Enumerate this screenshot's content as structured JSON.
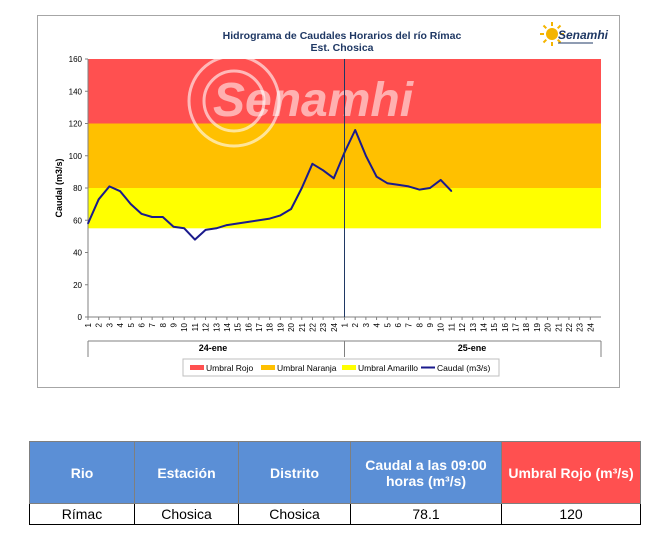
{
  "chart_data": {
    "type": "line",
    "title": "Hidrograma de Caudales Horarios del río Rímac",
    "subtitle": "Est. Chosica",
    "logo_text": "Senamhi",
    "watermark_text": "Senamhi",
    "ylabel": "Caudal  (m3/s)",
    "ylim": [
      0,
      160
    ],
    "yticks": [
      "0",
      "20",
      "40",
      "60",
      "80",
      "100",
      "120",
      "140",
      "160"
    ],
    "x_ticks": [
      "1",
      "2",
      "3",
      "4",
      "5",
      "6",
      "7",
      "8",
      "9",
      "10",
      "11",
      "12",
      "13",
      "14",
      "15",
      "16",
      "17",
      "18",
      "19",
      "20",
      "21",
      "22",
      "23",
      "24",
      "1",
      "2",
      "3",
      "4",
      "5",
      "6",
      "7",
      "8",
      "9",
      "10",
      "11",
      "12",
      "13",
      "14",
      "15",
      "16",
      "17",
      "18",
      "19",
      "20",
      "21",
      "22",
      "23",
      "24"
    ],
    "day_labels": [
      "24-ene",
      "25-ene"
    ],
    "thresholds": [
      {
        "name": "Umbral Rojo",
        "from": 120,
        "to": 160,
        "color": "#ff5050"
      },
      {
        "name": "Umbral Naranja",
        "from": 80,
        "to": 120,
        "color": "#ffc000"
      },
      {
        "name": "Umbral Amarillo",
        "from": 55,
        "to": 80,
        "color": "#ffff00"
      }
    ],
    "series": [
      {
        "name": "Caudal (m3/s)",
        "color": "#1a1a8c",
        "values": [
          58,
          73,
          81,
          78,
          70,
          64,
          62,
          62,
          56,
          55,
          48,
          54,
          55,
          57,
          58,
          59,
          60,
          61,
          63,
          67,
          80,
          95,
          91,
          86,
          102,
          116,
          100,
          87,
          83,
          82,
          81,
          79,
          80,
          85,
          78.1
        ]
      }
    ],
    "grid": false,
    "legend_position": "bottom"
  },
  "table": {
    "headers": [
      "Rio",
      "Estación",
      "Distrito",
      "Caudal a las 09:00 horas (m³/s)",
      "Umbral Rojo (m³/s)"
    ],
    "row": [
      "Rímac",
      "Chosica",
      "Chosica",
      "78.1",
      "120"
    ]
  }
}
